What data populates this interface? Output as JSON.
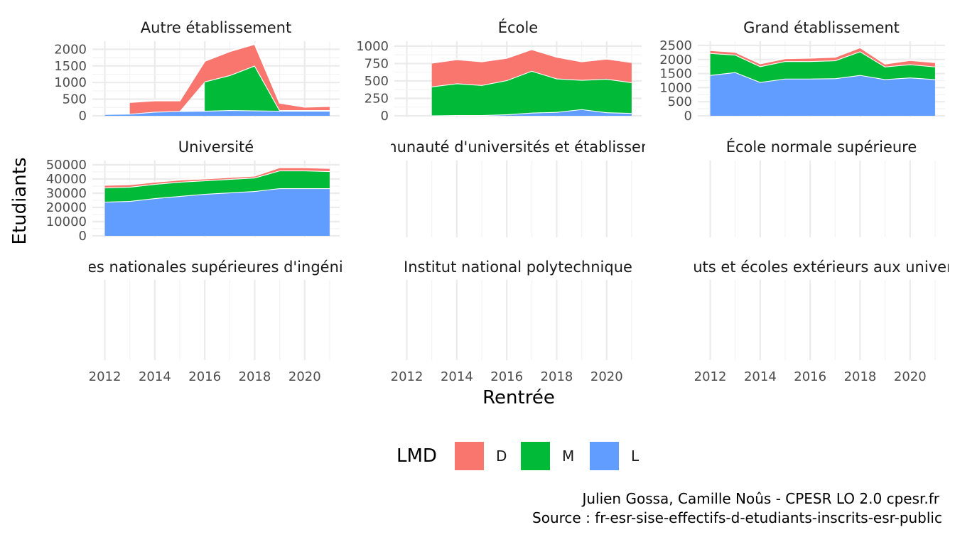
{
  "chart_data": {
    "type": "area",
    "stacked": true,
    "xlabel": "Rentrée",
    "ylabel": "Etudiants",
    "legend": {
      "title": "LMD",
      "position": "bottom",
      "entries": [
        {
          "key": "D",
          "label": "D",
          "color": "#F8766D"
        },
        {
          "key": "M",
          "label": "M",
          "color": "#00BA38"
        },
        {
          "key": "L",
          "label": "L",
          "color": "#619CFF"
        }
      ]
    },
    "x_ticks": [
      "2012",
      "2014",
      "2016",
      "2018",
      "2020"
    ],
    "x_range": [
      2012,
      2021
    ],
    "panels": [
      {
        "title": "Autre établissement",
        "yticks": [
          0,
          500,
          1000,
          1500,
          2000
        ],
        "ytick_labels": [
          "0",
          "500",
          "1000",
          "1500",
          "2000"
        ],
        "ylim": [
          0,
          2200
        ],
        "series": {
          "L": {
            "x": [
              2012,
              2013,
              2014,
              2015,
              2016,
              2017,
              2018,
              2019,
              2020,
              2021
            ],
            "y": [
              50,
              60,
              120,
              140,
              150,
              170,
              160,
              150,
              150,
              150
            ]
          },
          "M": {
            "x": [
              2016,
              2017,
              2018,
              2019,
              2020,
              2021
            ],
            "y": [
              880,
              1050,
              1350,
              20,
              20,
              20
            ]
          },
          "D": {
            "x": [
              2013,
              2014,
              2015,
              2016,
              2017,
              2018,
              2019,
              2020,
              2021
            ],
            "y": [
              350,
              340,
              320,
              620,
              720,
              650,
              220,
              100,
              120
            ]
          }
        }
      },
      {
        "title": "École",
        "yticks": [
          0,
          250,
          500,
          750,
          1000
        ],
        "ytick_labels": [
          "0",
          "250",
          "500",
          "750",
          "1000"
        ],
        "ylim": [
          0,
          1050
        ],
        "series": {
          "L": {
            "x": [
              2013,
              2014,
              2015,
              2016,
              2017,
              2018,
              2019,
              2020,
              2021
            ],
            "y": [
              5,
              10,
              10,
              20,
              45,
              55,
              95,
              50,
              40
            ]
          },
          "M": {
            "x": [
              2013,
              2014,
              2015,
              2016,
              2017,
              2018,
              2019,
              2020,
              2021
            ],
            "y": [
              415,
              455,
              430,
              490,
              600,
              480,
              420,
              480,
              440
            ]
          },
          "D": {
            "x": [
              2013,
              2014,
              2015,
              2016,
              2017,
              2018,
              2019,
              2020,
              2021
            ],
            "y": [
              340,
              345,
              340,
              320,
              310,
              310,
              265,
              290,
              290
            ]
          }
        }
      },
      {
        "title": "Grand établissement",
        "yticks": [
          0,
          500,
          1000,
          1500,
          2000,
          2500
        ],
        "ytick_labels": [
          "0",
          "500",
          "1000",
          "1500",
          "2000",
          "2500"
        ],
        "ylim": [
          0,
          2600
        ],
        "series": {
          "L": {
            "x": [
              2012,
              2013,
              2014,
              2015,
              2016,
              2017,
              2018,
              2019,
              2020,
              2021
            ],
            "y": [
              1450,
              1550,
              1200,
              1320,
              1320,
              1330,
              1450,
              1300,
              1360,
              1300
            ]
          },
          "M": {
            "x": [
              2012,
              2013,
              2014,
              2015,
              2016,
              2017,
              2018,
              2019,
              2020,
              2021
            ],
            "y": [
              780,
              620,
              560,
              620,
              620,
              640,
              840,
              450,
              470,
              450
            ]
          },
          "D": {
            "x": [
              2012,
              2013,
              2014,
              2015,
              2016,
              2017,
              2018,
              2019,
              2020,
              2021
            ],
            "y": [
              100,
              100,
              100,
              100,
              120,
              120,
              140,
              100,
              150,
              150
            ]
          }
        }
      },
      {
        "title": "Université",
        "yticks": [
          0,
          10000,
          20000,
          30000,
          40000,
          50000
        ],
        "ytick_labels": [
          "0",
          "10000",
          "20000",
          "30000",
          "40000",
          "50000"
        ],
        "ylim": [
          0,
          52000
        ],
        "series": {
          "L": {
            "x": [
              2012,
              2013,
              2014,
              2015,
              2016,
              2017,
              2018,
              2019,
              2020,
              2021
            ],
            "y": [
              24000,
              24500,
              26500,
              28000,
              29500,
              30500,
              31500,
              33500,
              33500,
              33500
            ]
          },
          "M": {
            "x": [
              2012,
              2013,
              2014,
              2015,
              2016,
              2017,
              2018,
              2019,
              2020,
              2021
            ],
            "y": [
              10000,
              10000,
              10000,
              10000,
              9500,
              9500,
              9500,
              12500,
              12500,
              12000
            ]
          },
          "D": {
            "x": [
              2012,
              2013,
              2014,
              2015,
              2016,
              2017,
              2018,
              2019,
              2020,
              2021
            ],
            "y": [
              1800,
              1700,
              1500,
              1500,
              1300,
              1300,
              1300,
              2200,
              2200,
              2200
            ]
          }
        }
      },
      {
        "title": "Communauté d'universités et établissements",
        "series": {}
      },
      {
        "title": "École normale supérieure",
        "series": {}
      },
      {
        "title": "Écoles nationales supérieures d'ingénieurs",
        "series": {}
      },
      {
        "title": "Institut national polytechnique",
        "series": {}
      },
      {
        "title": "Instituts et écoles extérieurs aux universités",
        "series": {}
      }
    ]
  },
  "caption": {
    "line1": "Julien Gossa, Camille Noûs - CPESR LO 2.0 cpesr.fr",
    "line2": "Source : fr-esr-sise-effectifs-d-etudiants-inscrits-esr-public"
  }
}
